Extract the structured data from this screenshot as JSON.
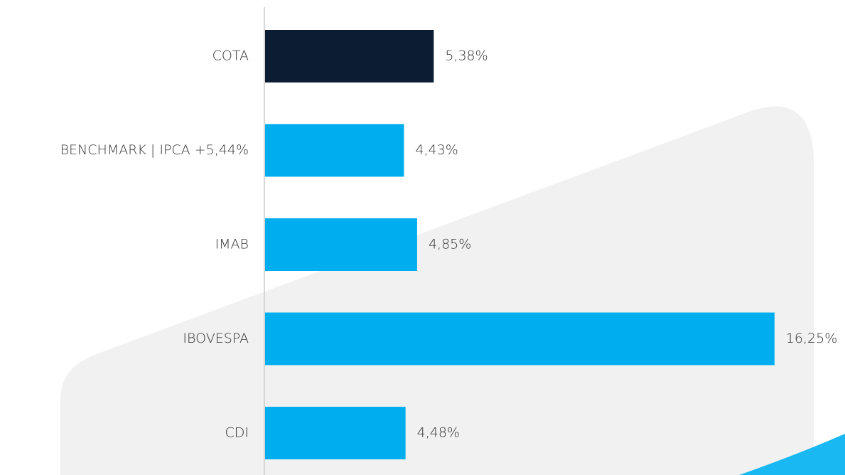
{
  "chart_data": {
    "type": "barh",
    "categories": [
      "COTA",
      "BENCHMARK | IPCA +5,44%",
      "IMAB",
      "IBOVESPA",
      "CDI"
    ],
    "values": [
      5.38,
      4.43,
      4.85,
      16.25,
      4.48
    ],
    "value_labels": [
      "5,38%",
      "4,43%",
      "4,85%",
      "16,25%",
      "4,48%"
    ],
    "colors": [
      "#0c1c33",
      "#00aeef",
      "#00aeef",
      "#00aeef",
      "#00aeef"
    ],
    "xlim": [
      0,
      18
    ]
  }
}
